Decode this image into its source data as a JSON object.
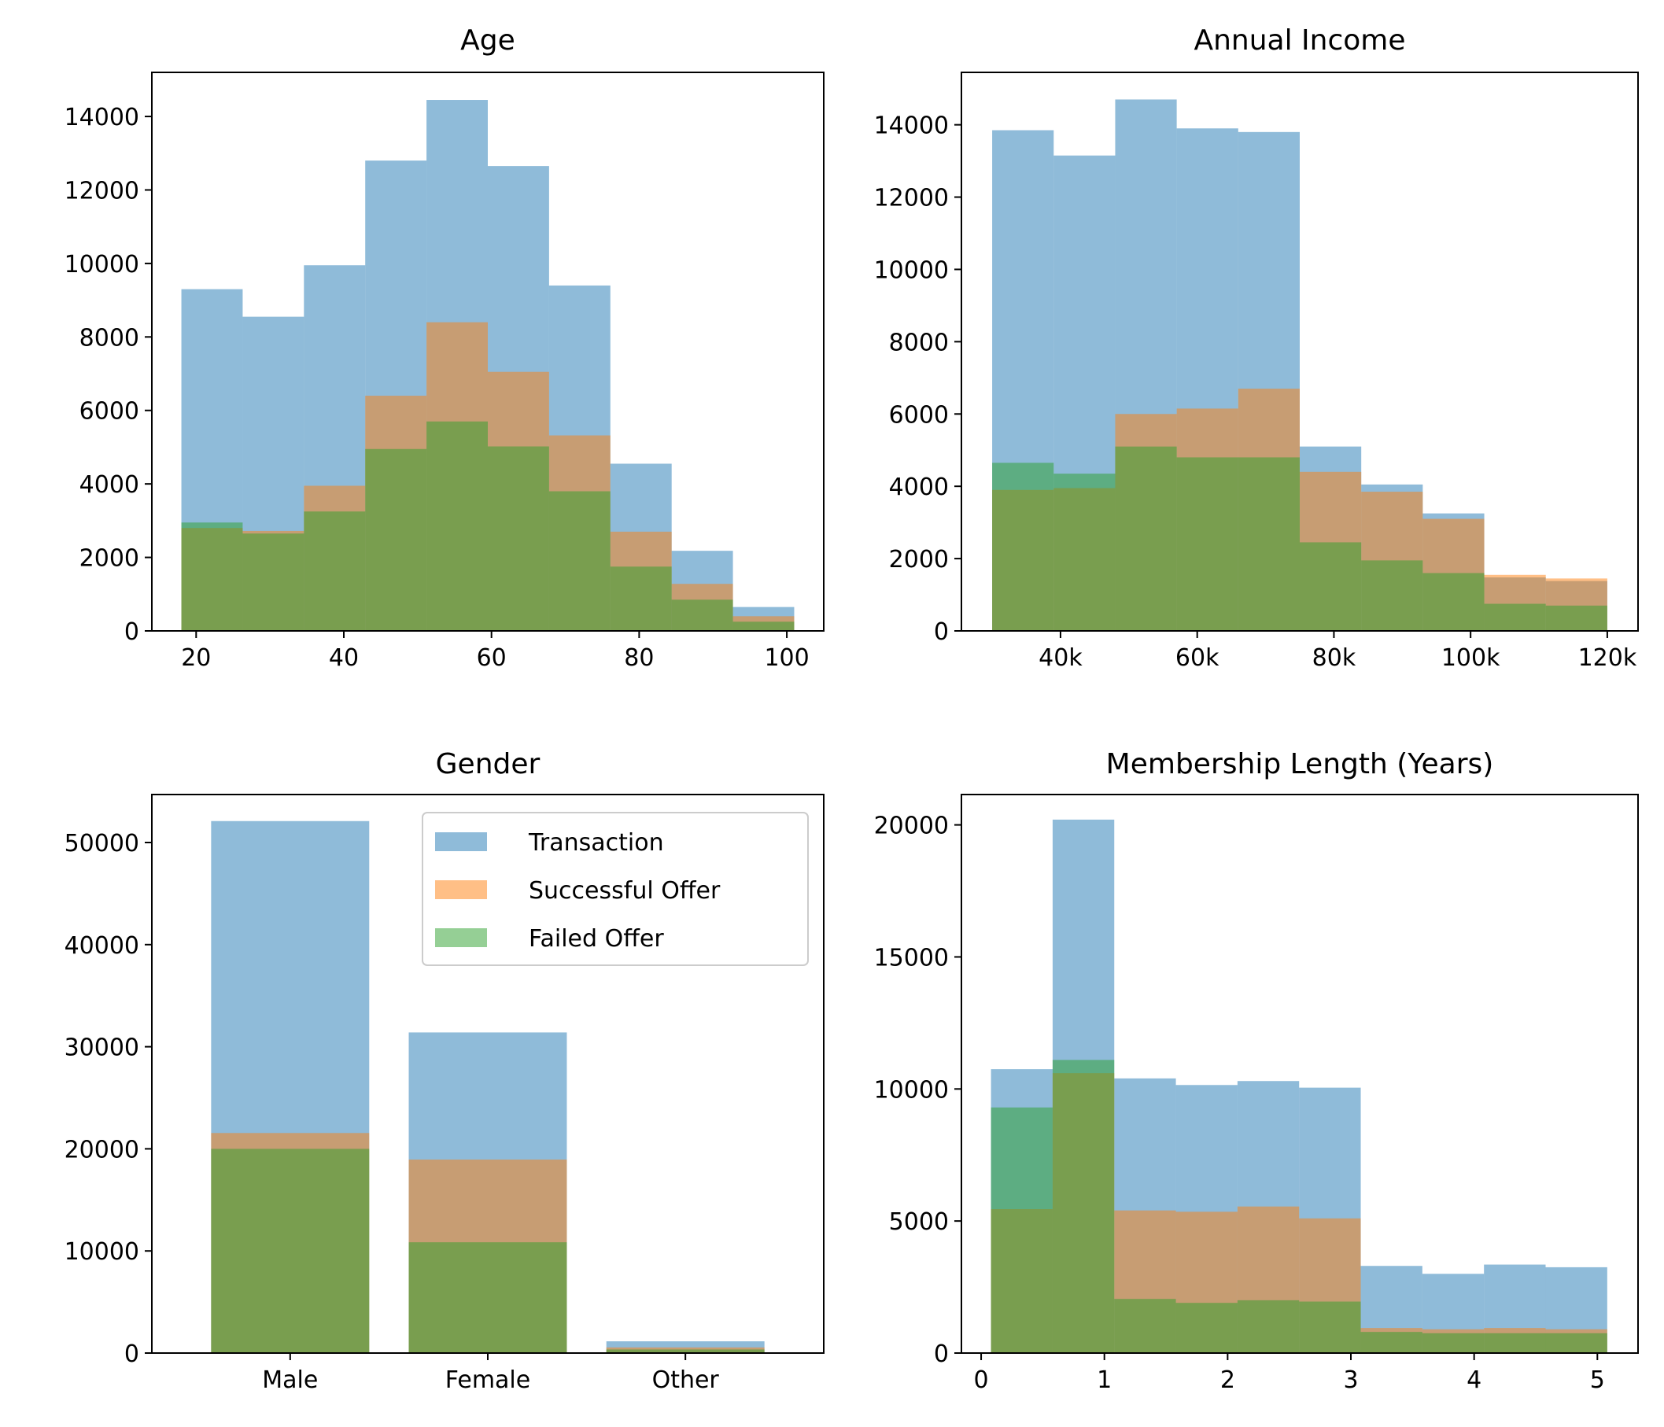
{
  "colors": {
    "transaction": "#1f77b4",
    "successful": "#ff7f0e",
    "failed": "#2ca02c",
    "bar_alpha": 0.5
  },
  "legend": {
    "location": "upper right of Gender panel",
    "entries": [
      "Transaction",
      "Successful Offer",
      "Failed Offer"
    ]
  },
  "chart_data": [
    {
      "type": "bar",
      "title": "Age",
      "xlabel": "",
      "ylabel": "",
      "xlim": [
        14,
        105
      ],
      "ylim": [
        0,
        15200
      ],
      "xticks": [
        20,
        40,
        60,
        80,
        100
      ],
      "xticklabels": [
        "20",
        "40",
        "60",
        "80",
        "100"
      ],
      "yticks": [
        0,
        2000,
        4000,
        6000,
        8000,
        10000,
        12000,
        14000
      ],
      "bin_edges": [
        18,
        26.3,
        34.6,
        42.9,
        51.2,
        59.5,
        67.8,
        76.1,
        84.4,
        92.7,
        101
      ],
      "series": [
        {
          "name": "Transaction",
          "values": [
            9300,
            8550,
            9950,
            12800,
            14450,
            12650,
            9400,
            4550,
            2180,
            650
          ]
        },
        {
          "name": "Successful Offer",
          "values": [
            2800,
            2720,
            3950,
            6400,
            8400,
            7050,
            5320,
            2700,
            1280,
            400
          ]
        },
        {
          "name": "Failed Offer",
          "values": [
            2950,
            2650,
            3250,
            4950,
            5700,
            5020,
            3800,
            1750,
            850,
            250
          ]
        }
      ]
    },
    {
      "type": "bar",
      "title": "Annual Income",
      "xlabel": "",
      "ylabel": "",
      "xlim": [
        25500,
        124500
      ],
      "ylim": [
        0,
        15450
      ],
      "xticks": [
        40000,
        60000,
        80000,
        100000,
        120000
      ],
      "xticklabels": [
        "40k",
        "60k",
        "80k",
        "100k",
        "120k"
      ],
      "yticks": [
        0,
        2000,
        4000,
        6000,
        8000,
        10000,
        12000,
        14000
      ],
      "bin_edges": [
        30000,
        39000,
        48000,
        57000,
        66000,
        75000,
        84000,
        93000,
        102000,
        111000,
        120000
      ],
      "series": [
        {
          "name": "Transaction",
          "values": [
            13850,
            13150,
            14700,
            13900,
            13800,
            5100,
            4050,
            3250,
            1480,
            1380
          ]
        },
        {
          "name": "Successful Offer",
          "values": [
            3900,
            3950,
            6000,
            6150,
            6700,
            4400,
            3850,
            3100,
            1550,
            1450
          ]
        },
        {
          "name": "Failed Offer",
          "values": [
            4650,
            4350,
            5100,
            4800,
            4800,
            2450,
            1950,
            1600,
            750,
            700
          ]
        }
      ]
    },
    {
      "type": "bar",
      "title": "Gender",
      "xlabel": "",
      "ylabel": "",
      "ylim": [
        0,
        54700
      ],
      "categories": [
        "Male",
        "Female",
        "Other"
      ],
      "yticks": [
        0,
        10000,
        20000,
        30000,
        40000,
        50000
      ],
      "series": [
        {
          "name": "Transaction",
          "values": [
            52100,
            31400,
            1150
          ]
        },
        {
          "name": "Successful Offer",
          "values": [
            21550,
            18950,
            550
          ]
        },
        {
          "name": "Failed Offer",
          "values": [
            20000,
            10850,
            350
          ]
        }
      ]
    },
    {
      "type": "bar",
      "title": "Membership Length (Years)",
      "xlabel": "",
      "ylabel": "",
      "xlim": [
        -0.16,
        5.33
      ],
      "ylim": [
        0,
        21150
      ],
      "xticks": [
        0,
        1,
        2,
        3,
        4,
        5
      ],
      "xticklabels": [
        "0",
        "1",
        "2",
        "3",
        "4",
        "5"
      ],
      "yticks": [
        0,
        5000,
        10000,
        15000,
        20000
      ],
      "bin_edges": [
        0.08,
        0.58,
        1.08,
        1.58,
        2.08,
        2.58,
        3.08,
        3.58,
        4.08,
        4.58,
        5.08
      ],
      "series": [
        {
          "name": "Transaction",
          "values": [
            10750,
            20200,
            10400,
            10150,
            10300,
            10050,
            3300,
            3000,
            3350,
            3250
          ]
        },
        {
          "name": "Successful Offer",
          "values": [
            5450,
            10600,
            5400,
            5350,
            5550,
            5100,
            950,
            900,
            950,
            900
          ]
        },
        {
          "name": "Failed Offer",
          "values": [
            9300,
            11100,
            2050,
            1900,
            2000,
            1950,
            800,
            750,
            750,
            750
          ]
        }
      ]
    }
  ]
}
